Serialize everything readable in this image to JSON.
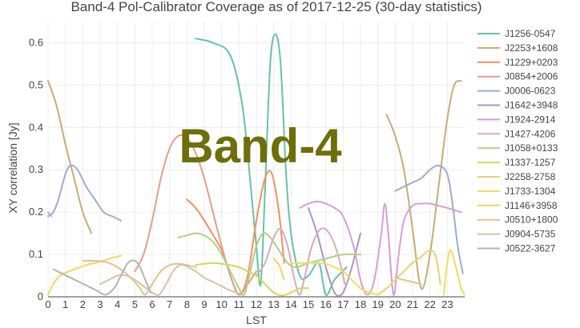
{
  "chart_data": {
    "type": "line",
    "title": "Band-4 Pol-Calibrator Coverage as of 2017-12-25 (30-day statistics)",
    "xlabel": "LST",
    "ylabel": "XY correlation [Jy]",
    "watermark": "Band-4",
    "xlim": [
      0,
      24
    ],
    "ylim": [
      0,
      0.65
    ],
    "xticks": [
      0,
      1,
      2,
      3,
      4,
      5,
      6,
      7,
      8,
      9,
      10,
      11,
      12,
      13,
      14,
      15,
      16,
      17,
      18,
      19,
      20,
      21,
      22,
      23
    ],
    "yticks": [
      0,
      0.1,
      0.2,
      0.3,
      0.4,
      0.5,
      0.6
    ],
    "grid": true,
    "legend_position": "right",
    "series": [
      {
        "name": "J1256-0547",
        "color": "#66c2a5",
        "points": [
          [
            8.5,
            0.61
          ],
          [
            9.5,
            0.6
          ],
          [
            10.5,
            0.57
          ],
          [
            11.2,
            0.45
          ],
          [
            11.7,
            0.25
          ],
          [
            12.0,
            0.12
          ],
          [
            12.25,
            0.03
          ],
          [
            12.5,
            0.25
          ],
          [
            12.8,
            0.55
          ],
          [
            13.1,
            0.62
          ],
          [
            13.4,
            0.55
          ],
          [
            13.7,
            0.3
          ],
          [
            14.0,
            0.15
          ],
          [
            14.5,
            0.05
          ],
          [
            15.0,
            0.05
          ],
          [
            15.6,
            0.08
          ],
          [
            16.0,
            0.005
          ],
          [
            16.5,
            0.04
          ],
          [
            17.2,
            0.07
          ]
        ]
      },
      {
        "name": "J2253+1608",
        "color": "#c5ac77",
        "points": [
          [
            0,
            0.51
          ],
          [
            0.5,
            0.45
          ],
          [
            1.0,
            0.36
          ],
          [
            1.5,
            0.28
          ],
          [
            2.0,
            0.2
          ],
          [
            2.5,
            0.15
          ],
          [
            19.5,
            0.43
          ],
          [
            20.0,
            0.38
          ],
          [
            20.5,
            0.3
          ],
          [
            21.0,
            0.16
          ],
          [
            21.5,
            0.02
          ],
          [
            22.0,
            0.1
          ],
          [
            22.5,
            0.26
          ],
          [
            23.0,
            0.42
          ],
          [
            23.4,
            0.5
          ],
          [
            23.8,
            0.51
          ]
        ]
      },
      {
        "name": "J1229+0203",
        "color": "#f09060",
        "points": [
          [
            8.0,
            0.23
          ],
          [
            8.5,
            0.21
          ],
          [
            9.0,
            0.18
          ],
          [
            10.0,
            0.11
          ],
          [
            10.5,
            0.05
          ],
          [
            11.0,
            0.005
          ],
          [
            11.5,
            0.05
          ],
          [
            12.0,
            0.18
          ],
          [
            12.5,
            0.28
          ],
          [
            12.9,
            0.29
          ],
          [
            13.3,
            0.2
          ],
          [
            13.6,
            0.08
          ]
        ]
      },
      {
        "name": "J0854+2006",
        "color": "#e0a08c",
        "points": [
          [
            5.0,
            0.06
          ],
          [
            5.5,
            0.1
          ],
          [
            6.0,
            0.18
          ],
          [
            6.5,
            0.28
          ],
          [
            7.0,
            0.35
          ],
          [
            7.5,
            0.38
          ],
          [
            8.0,
            0.375
          ],
          [
            8.5,
            0.34
          ],
          [
            9.0,
            0.28
          ],
          [
            9.5,
            0.2
          ],
          [
            10.0,
            0.12
          ],
          [
            10.5,
            0.05
          ],
          [
            11.0,
            0.005
          ],
          [
            11.5,
            0.03
          ],
          [
            12.0,
            0.06
          ]
        ]
      },
      {
        "name": "J0006-0623",
        "color": "#9caec8",
        "points": [
          [
            0,
            0.19
          ],
          [
            0.3,
            0.2
          ],
          [
            0.6,
            0.23
          ],
          [
            1.0,
            0.29
          ],
          [
            1.3,
            0.31
          ],
          [
            1.7,
            0.3
          ],
          [
            2.2,
            0.26
          ],
          [
            2.7,
            0.23
          ],
          [
            3.2,
            0.2
          ],
          [
            3.7,
            0.19
          ],
          [
            4.2,
            0.18
          ],
          [
            20.0,
            0.25
          ],
          [
            20.5,
            0.26
          ],
          [
            21.0,
            0.27
          ],
          [
            21.5,
            0.28
          ],
          [
            22.0,
            0.3
          ],
          [
            22.5,
            0.31
          ],
          [
            23.0,
            0.29
          ],
          [
            23.3,
            0.22
          ],
          [
            23.6,
            0.12
          ],
          [
            23.9,
            0.055
          ]
        ]
      },
      {
        "name": "J1642+3948",
        "color": "#a795c8",
        "points": [
          [
            15.0,
            0.21
          ],
          [
            15.5,
            0.15
          ],
          [
            16.0,
            0.07
          ],
          [
            16.5,
            0.01
          ],
          [
            16.9,
            0.005
          ],
          [
            17.2,
            0.03
          ],
          [
            17.5,
            0.07
          ],
          [
            18.0,
            0.15
          ]
        ]
      },
      {
        "name": "J1924-2914",
        "color": "#d79ed2",
        "points": [
          [
            0,
            0.2
          ],
          [
            0.2,
            0.19
          ],
          [
            14.5,
            0.21
          ],
          [
            15.0,
            0.22
          ],
          [
            15.5,
            0.225
          ],
          [
            16.0,
            0.22
          ],
          [
            16.5,
            0.21
          ],
          [
            17.0,
            0.19
          ],
          [
            17.6,
            0.12
          ],
          [
            18.0,
            0.04
          ],
          [
            18.4,
            0.005
          ],
          [
            18.8,
            0.04
          ],
          [
            19.2,
            0.15
          ],
          [
            19.4,
            0.22
          ],
          [
            19.6,
            0.15
          ],
          [
            19.9,
            0.005
          ],
          [
            20.2,
            0.1
          ],
          [
            20.5,
            0.18
          ],
          [
            21.0,
            0.215
          ],
          [
            21.5,
            0.22
          ],
          [
            22.0,
            0.22
          ],
          [
            22.5,
            0.215
          ],
          [
            23.0,
            0.21
          ],
          [
            23.8,
            0.2
          ]
        ]
      },
      {
        "name": "J1427-4206",
        "color": "#d9a9c0",
        "points": [
          [
            12.0,
            0.05
          ],
          [
            12.5,
            0.08
          ],
          [
            13.0,
            0.14
          ],
          [
            13.4,
            0.16
          ],
          [
            13.8,
            0.12
          ],
          [
            14.2,
            0.04
          ],
          [
            14.5,
            0.005
          ],
          [
            14.8,
            0.05
          ],
          [
            15.2,
            0.12
          ],
          [
            15.7,
            0.16
          ],
          [
            16.2,
            0.15
          ],
          [
            16.7,
            0.1
          ],
          [
            17.1,
            0.03
          ]
        ]
      },
      {
        "name": "J1058+0133",
        "color": "#b2cf86",
        "points": [
          [
            7.5,
            0.14
          ],
          [
            8.0,
            0.145
          ],
          [
            8.5,
            0.15
          ],
          [
            9.0,
            0.145
          ],
          [
            9.5,
            0.13
          ],
          [
            10.0,
            0.1
          ],
          [
            10.5,
            0.06
          ],
          [
            11.0,
            0.02
          ],
          [
            11.3,
            0.005
          ],
          [
            11.6,
            0.05
          ],
          [
            12.0,
            0.12
          ],
          [
            12.4,
            0.15
          ],
          [
            12.8,
            0.14
          ],
          [
            13.3,
            0.11
          ],
          [
            13.8,
            0.08
          ],
          [
            14.3,
            0.07
          ],
          [
            15.0,
            0.08
          ],
          [
            16.0,
            0.09
          ],
          [
            17.0,
            0.1
          ],
          [
            18.0,
            0.1
          ]
        ]
      },
      {
        "name": "J1337-1257",
        "color": "#cfd860",
        "points": [
          [
            8.5,
            0.075
          ],
          [
            9.0,
            0.078
          ],
          [
            9.5,
            0.08
          ],
          [
            10.0,
            0.078
          ],
          [
            10.5,
            0.075
          ],
          [
            11.0,
            0.07
          ],
          [
            11.5,
            0.06
          ],
          [
            12.0,
            0.05
          ],
          [
            12.5,
            0.03
          ],
          [
            13.0,
            0.01
          ],
          [
            13.5,
            0.003
          ],
          [
            14.0,
            0.01
          ],
          [
            14.5,
            0.02
          ],
          [
            15.0,
            0.02
          ]
        ]
      },
      {
        "name": "J2258-2758",
        "color": "#e6d273",
        "points": [
          [
            19.0,
            0.005
          ],
          [
            19.5,
            0.02
          ],
          [
            20.0,
            0.04
          ],
          [
            20.5,
            0.06
          ],
          [
            21.0,
            0.08
          ],
          [
            21.5,
            0.095
          ],
          [
            22.0,
            0.11
          ],
          [
            22.3,
            0.1
          ],
          [
            22.5,
            0.06
          ],
          [
            22.6,
            0.03
          ]
        ]
      },
      {
        "name": "J1733-1304",
        "color": "#f2dc5a",
        "points": [
          [
            14.0,
            0.08
          ],
          [
            14.5,
            0.08
          ],
          [
            15.0,
            0.08
          ],
          [
            15.5,
            0.08
          ],
          [
            16.0,
            0.078
          ],
          [
            16.5,
            0.07
          ],
          [
            17.0,
            0.06
          ],
          [
            17.5,
            0.04
          ],
          [
            18.0,
            0.02
          ],
          [
            18.5,
            0.01
          ],
          [
            19.0,
            0.005
          ],
          [
            22.8,
            0.005
          ],
          [
            23.0,
            0.08
          ],
          [
            23.2,
            0.11
          ],
          [
            23.5,
            0.07
          ],
          [
            23.8,
            0.02
          ],
          [
            24.0,
            0.005
          ]
        ]
      },
      {
        "name": "J1146+3958",
        "color": "#f5d36a",
        "points": [
          [
            0,
            0.005
          ],
          [
            0.3,
            0.03
          ],
          [
            0.7,
            0.05
          ],
          [
            1.2,
            0.06
          ],
          [
            1.7,
            0.068
          ],
          [
            2.2,
            0.075
          ],
          [
            2.7,
            0.08
          ],
          [
            3.2,
            0.085
          ],
          [
            3.7,
            0.092
          ],
          [
            4.2,
            0.097
          ],
          [
            13.0,
            0.09
          ],
          [
            13.3,
            0.075
          ],
          [
            13.6,
            0.04
          ]
        ]
      },
      {
        "name": "J0510+1800",
        "color": "#e0c28e",
        "points": [
          [
            2.0,
            0.085
          ],
          [
            2.5,
            0.085
          ],
          [
            3.0,
            0.084
          ],
          [
            3.5,
            0.08
          ],
          [
            4.0,
            0.07
          ],
          [
            4.5,
            0.055
          ],
          [
            5.0,
            0.035
          ],
          [
            5.3,
            0.02
          ],
          [
            5.6,
            0.005
          ],
          [
            6.0,
            0.03
          ],
          [
            6.5,
            0.06
          ],
          [
            7.0,
            0.075
          ],
          [
            7.5,
            0.078
          ],
          [
            8.0,
            0.075
          ],
          [
            8.5,
            0.07
          ],
          [
            20.0,
            0.045
          ],
          [
            20.5,
            0.04
          ],
          [
            21.0,
            0.035
          ],
          [
            21.5,
            0.03
          ]
        ]
      },
      {
        "name": "J0904-5735",
        "color": "#d9c2a4",
        "points": [
          [
            3.0,
            0.03
          ],
          [
            3.5,
            0.04
          ],
          [
            4.0,
            0.05
          ],
          [
            4.5,
            0.05
          ],
          [
            5.0,
            0.04
          ],
          [
            5.5,
            0.025
          ],
          [
            6.0,
            0.01
          ],
          [
            6.4,
            0.005
          ],
          [
            6.8,
            0.03
          ],
          [
            7.2,
            0.06
          ],
          [
            7.6,
            0.075
          ],
          [
            8.0,
            0.072
          ],
          [
            8.5,
            0.06
          ],
          [
            9.0,
            0.045
          ],
          [
            9.5,
            0.035
          ],
          [
            10.0,
            0.025
          ],
          [
            10.5,
            0.015
          ],
          [
            11.0,
            0.008
          ]
        ]
      },
      {
        "name": "J0522-3627",
        "color": "#b4b4b4",
        "points": [
          [
            0.3,
            0.065
          ],
          [
            0.8,
            0.055
          ],
          [
            1.3,
            0.045
          ],
          [
            1.8,
            0.035
          ],
          [
            2.3,
            0.025
          ],
          [
            2.8,
            0.015
          ],
          [
            3.3,
            0.005
          ],
          [
            3.8,
            0.02
          ],
          [
            4.2,
            0.05
          ],
          [
            4.6,
            0.08
          ],
          [
            5.0,
            0.085
          ],
          [
            5.3,
            0.07
          ],
          [
            5.6,
            0.04
          ],
          [
            5.9,
            0.01
          ]
        ]
      }
    ]
  }
}
